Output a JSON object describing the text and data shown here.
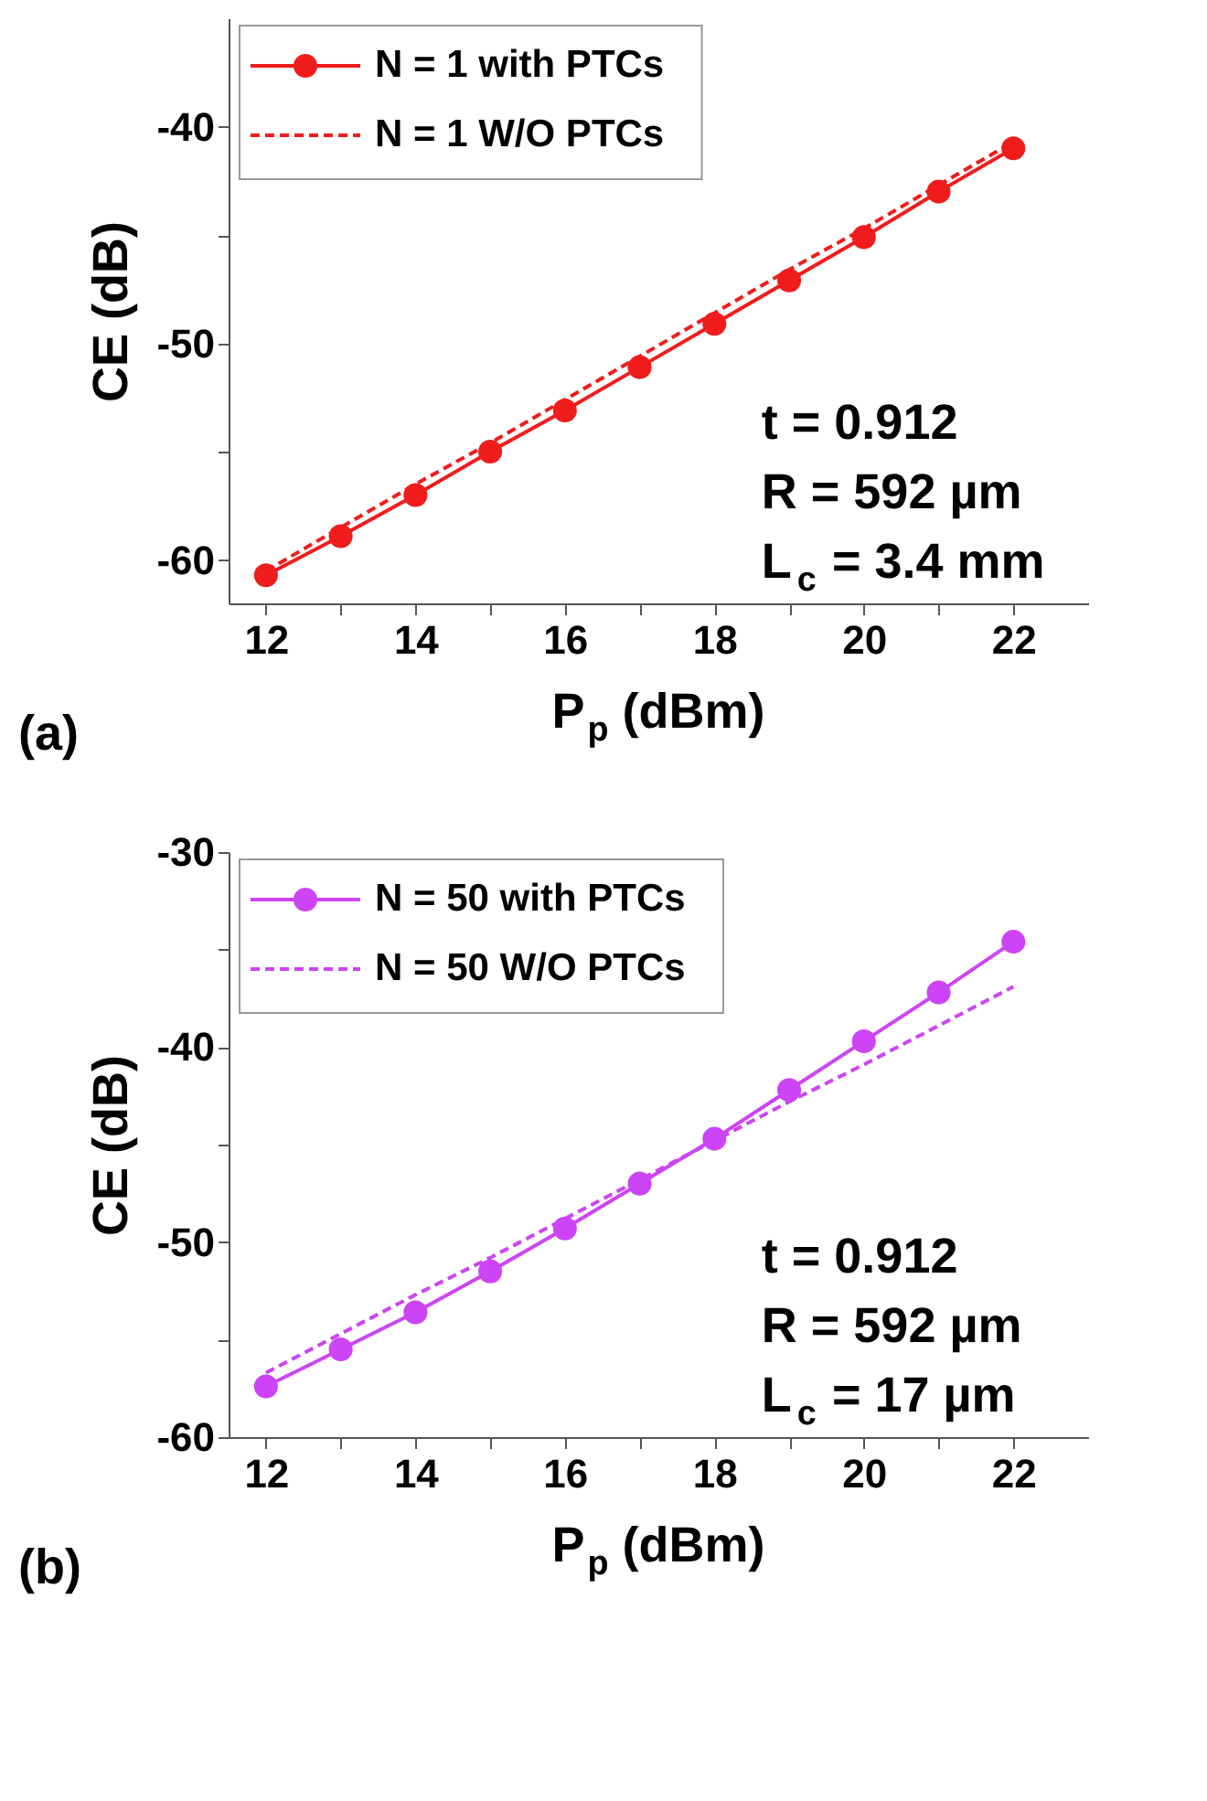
{
  "chart_data": [
    {
      "type": "line",
      "xlabel": "P$_{p}$ (dBm)",
      "ylabel": "CE (dB)",
      "x": [
        12,
        13,
        14,
        15,
        16,
        17,
        18,
        19,
        20,
        21,
        22
      ],
      "series": [
        {
          "name": "N = 1 with PTCs",
          "color": "#f01c1c",
          "marker": "circle",
          "line_style": "solid",
          "values": [
            -60.7,
            -58.9,
            -57.0,
            -55.0,
            -53.1,
            -51.1,
            -49.1,
            -47.1,
            -45.1,
            -43.0,
            -41.0
          ]
        },
        {
          "name": "N = 1 W/O PTCs",
          "color": "#f01c1c",
          "marker": "none",
          "line_style": "dashed",
          "values": [
            -60.5,
            -58.5,
            -56.5,
            -54.6,
            -52.6,
            -50.6,
            -48.6,
            -46.6,
            -44.7,
            -42.7,
            -40.7
          ]
        }
      ],
      "xlim": [
        11.5,
        23
      ],
      "xticks": [
        12,
        {
          "value": 13,
          "label": null
        },
        14,
        {
          "value": 15,
          "label": null
        },
        16,
        {
          "value": 17,
          "label": null
        },
        18,
        {
          "value": 19,
          "label": null
        },
        20,
        {
          "value": 21,
          "label": null
        },
        22
      ],
      "ylim": [
        -62,
        -35
      ],
      "yticks": [
        -60,
        {
          "value": -55,
          "label": null
        },
        -50,
        {
          "value": -45,
          "label": null
        },
        -40
      ],
      "grid": false,
      "legend": "top left",
      "annotations": [
        "t = 0.912",
        "R = 592 µm",
        "L$_{c}$ = 3.4 mm",
        "(a)"
      ]
    },
    {
      "type": "line",
      "xlabel": "P$_{p}$ (dBm)",
      "ylabel": "CE (dB)",
      "x": [
        12,
        13,
        14,
        15,
        16,
        17,
        18,
        19,
        20,
        21,
        22
      ],
      "series": [
        {
          "name": "N = 50 with PTCs",
          "color": "#cc44f5",
          "marker": "circle",
          "line_style": "solid",
          "values": [
            -57.4,
            -55.5,
            -53.6,
            -51.5,
            -49.3,
            -47.0,
            -44.7,
            -42.2,
            -39.7,
            -37.2,
            -34.6
          ]
        },
        {
          "name": "N = 50 W/O PTCs",
          "color": "#cc44f5",
          "marker": "none",
          "line_style": "dashed",
          "values": [
            -56.7,
            -54.7,
            -52.7,
            -50.8,
            -48.8,
            -46.8,
            -44.8,
            -42.8,
            -40.9,
            -38.9,
            -36.9
          ]
        }
      ],
      "xlim": [
        11.5,
        23
      ],
      "xticks": [
        12,
        {
          "value": 13,
          "label": null
        },
        14,
        {
          "value": 15,
          "label": null
        },
        16,
        {
          "value": 17,
          "label": null
        },
        18,
        {
          "value": 19,
          "label": null
        },
        20,
        {
          "value": 21,
          "label": null
        },
        22
      ],
      "ylim": [
        -60,
        -30
      ],
      "yticks": [
        -60,
        {
          "value": -55,
          "label": null
        },
        -50,
        {
          "value": -45,
          "label": null
        },
        -40,
        {
          "value": -35,
          "label": null
        },
        -30
      ],
      "grid": false,
      "legend": "top left",
      "annotations": [
        "t = 0.912",
        "R = 592 µm",
        "L$_{c}$ = 17 µm",
        "(b)"
      ]
    }
  ]
}
